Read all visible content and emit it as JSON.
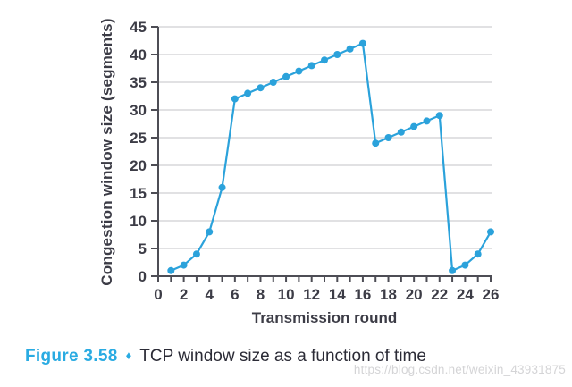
{
  "chart_data": {
    "type": "line",
    "title": "",
    "xlabel": "Transmission round",
    "ylabel": "Congestion window size (segments)",
    "x": [
      1,
      2,
      3,
      4,
      5,
      6,
      7,
      8,
      9,
      10,
      11,
      12,
      13,
      14,
      15,
      16,
      17,
      18,
      19,
      20,
      21,
      22,
      23,
      24,
      25,
      26
    ],
    "values": [
      1,
      2,
      4,
      8,
      16,
      32,
      33,
      34,
      35,
      36,
      37,
      38,
      39,
      40,
      41,
      42,
      24,
      25,
      26,
      27,
      28,
      29,
      1,
      2,
      4,
      8
    ],
    "xlim": [
      0,
      26
    ],
    "ylim": [
      0,
      45
    ],
    "xticks_labeled": [
      0,
      2,
      4,
      6,
      8,
      10,
      12,
      14,
      16,
      18,
      20,
      22,
      24,
      26
    ],
    "xtick_minor_step": 1,
    "yticks": [
      0,
      5,
      10,
      15,
      20,
      25,
      30,
      35,
      40,
      45
    ],
    "grid": "horizontal",
    "legend": "none",
    "marker": "circle",
    "colors": {
      "line": "#2ba2db",
      "marker": "#2ba2db",
      "grid": "#cfcfd2",
      "axis": "#4d4d55",
      "tick_text": "#3c3c46"
    }
  },
  "caption": {
    "number": "Figure 3.58",
    "diamond_icon": "♦",
    "text": "TCP window size as a function of time",
    "number_color": "#29abe2"
  },
  "watermark": {
    "text": "https://blog.csdn.net/weixin_43931875",
    "color": "#d4d4d6"
  }
}
